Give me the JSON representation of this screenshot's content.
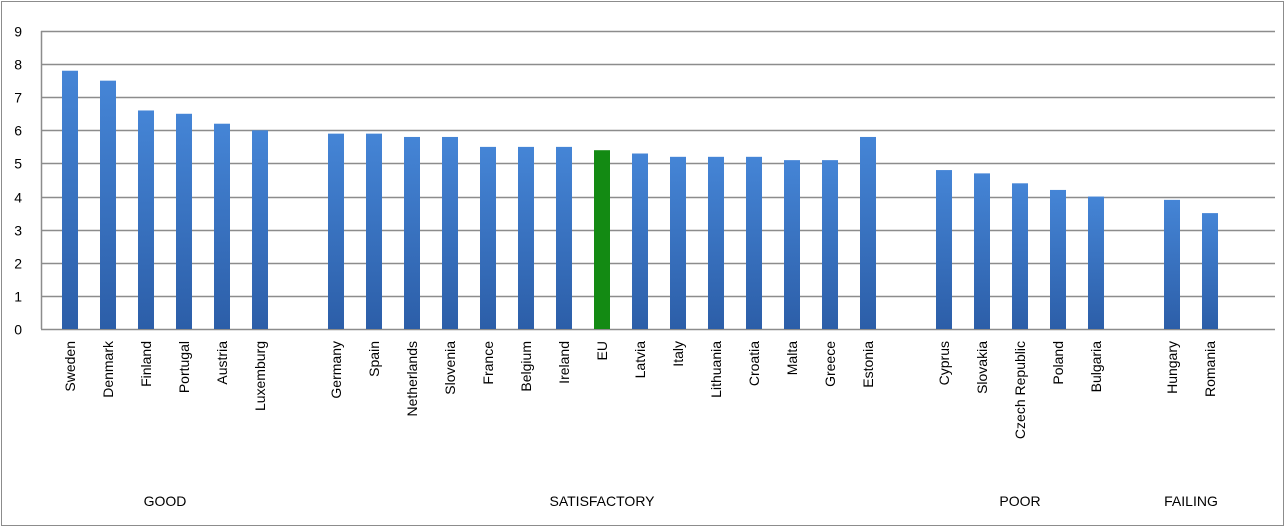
{
  "chart_data": {
    "type": "bar",
    "categories": [
      "Sweden",
      "Denmark",
      "Finland",
      "Portugal",
      "Austria",
      "Luxemburg",
      "Germany",
      "Spain",
      "Netherlands",
      "Slovenia",
      "France",
      "Belgium",
      "Ireland",
      "EU",
      "Latvia",
      "Italy",
      "Lithuania",
      "Croatia",
      "Malta",
      "Greece",
      "Estonia",
      "Cyprus",
      "Slovakia",
      "Czech Republic",
      "Poland",
      "Bulgaria",
      "Hungary",
      "Romania"
    ],
    "values": [
      7.8,
      7.5,
      6.6,
      6.5,
      6.2,
      6.0,
      5.9,
      5.9,
      5.8,
      5.8,
      5.5,
      5.5,
      5.5,
      5.4,
      5.3,
      5.2,
      5.2,
      5.2,
      5.1,
      5.1,
      5.8,
      4.8,
      4.7,
      4.4,
      4.2,
      4.0,
      3.9,
      3.5
    ],
    "highlight": "EU",
    "groups": [
      {
        "label": "GOOD",
        "from": 0,
        "to": 5
      },
      {
        "label": "SATISFACTORY",
        "from": 6,
        "to": 20
      },
      {
        "label": "POOR",
        "from": 21,
        "to": 25
      },
      {
        "label": "FAILING",
        "from": 26,
        "to": 27
      }
    ],
    "ylim": [
      0,
      9
    ],
    "yticks": [
      0,
      1,
      2,
      3,
      4,
      5,
      6,
      7,
      8,
      9
    ],
    "grid": true,
    "colors": {
      "bar": "#3a73c4",
      "highlight": "#138a13",
      "grid": "#8c8c8c"
    }
  }
}
